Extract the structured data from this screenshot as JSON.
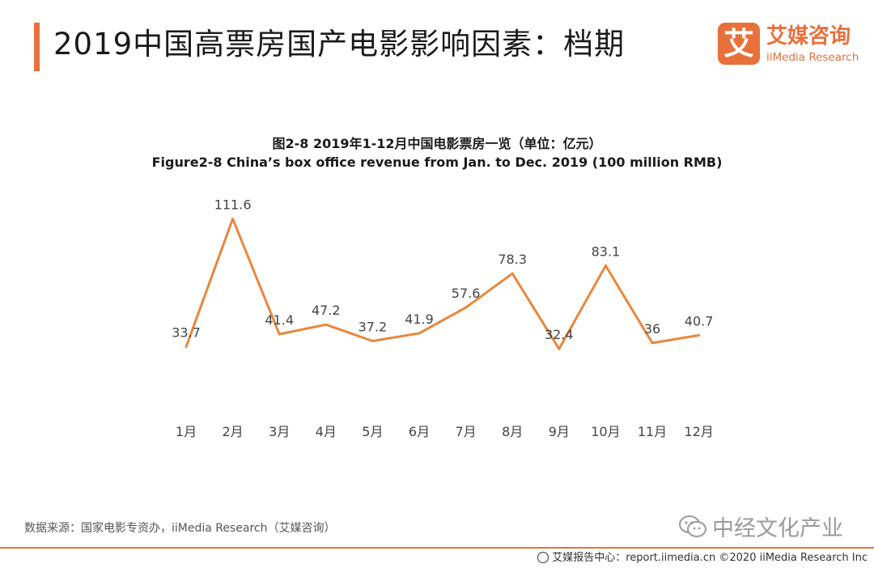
{
  "header": {
    "title": "2019中国高票房国产电影影响因素：档期",
    "accent_color": "#e8703a"
  },
  "logo": {
    "mark_char": "艾",
    "name_cn": "艾媒咨询",
    "name_en": "iiMedia Research"
  },
  "chart_data": {
    "type": "line",
    "title": "图2-8 2019年1-12月中国电影票房一览（单位：亿元）",
    "subtitle": "Figure2-8 China’s box office revenue from Jan. to Dec. 2019 (100 million RMB)",
    "categories": [
      "1月",
      "2月",
      "3月",
      "4月",
      "5月",
      "6月",
      "7月",
      "8月",
      "9月",
      "10月",
      "11月",
      "12月"
    ],
    "values": [
      33.7,
      111.6,
      41.4,
      47.2,
      37.2,
      41.9,
      57.6,
      78.3,
      32.4,
      83.1,
      36,
      40.7
    ],
    "value_labels": [
      "33.7",
      "111.6",
      "41.4",
      "47.2",
      "37.2",
      "41.9",
      "57.6",
      "78.3",
      "32.4",
      "83.1",
      "36",
      "40.7"
    ],
    "xlabel": "",
    "ylabel": "",
    "ylim": [
      0,
      130
    ],
    "grid": false,
    "line_color": "#e8873e"
  },
  "source": "数据来源：国家电影专资办，iiMedia Research（艾媒咨询）",
  "watermark": "中经文化产业",
  "footer": {
    "text": "艾媒报告中心：report.iimedia.cn ©2020 iiMedia Research Inc"
  }
}
